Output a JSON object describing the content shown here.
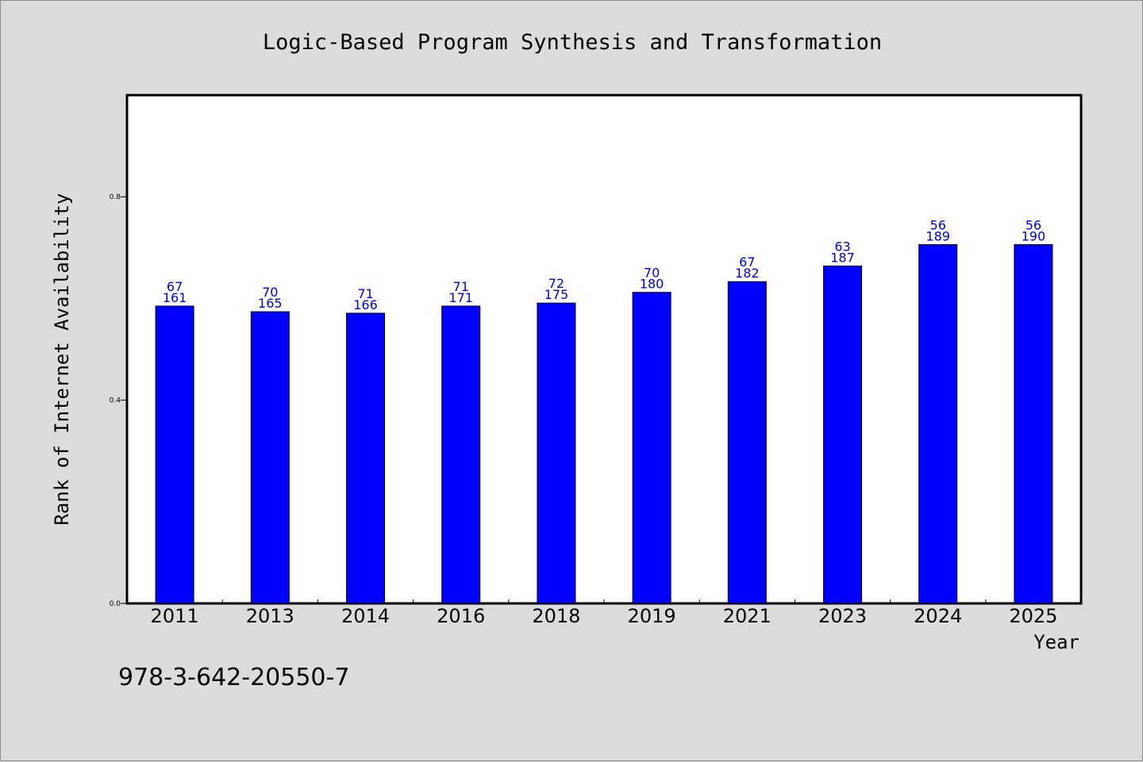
{
  "chart_data": {
    "type": "bar",
    "title": "Logic-Based Program Synthesis and Transformation",
    "xlabel": "Year",
    "ylabel": "Rank of Internet Availability",
    "categories": [
      "2011",
      "2013",
      "2014",
      "2016",
      "2018",
      "2019",
      "2021",
      "2023",
      "2024",
      "2025"
    ],
    "values": [
      0.585,
      0.574,
      0.571,
      0.585,
      0.591,
      0.612,
      0.633,
      0.664,
      0.706,
      0.706
    ],
    "labels_top": [
      "67",
      "70",
      "71",
      "71",
      "72",
      "70",
      "67",
      "63",
      "56",
      "56"
    ],
    "labels_bottom": [
      "161",
      "165",
      "166",
      "171",
      "175",
      "180",
      "182",
      "187",
      "189",
      "190"
    ],
    "yticks": [
      "0.0",
      "0.4",
      "0.8"
    ],
    "ytick_values": [
      0.0,
      0.4,
      0.8
    ],
    "ylim": [
      0,
      1.0
    ],
    "bar_color": "#0000ff",
    "label_color": "#0000cc",
    "grid": false,
    "legend": "none"
  },
  "footer": {
    "isbn": "978-3-642-20550-7"
  }
}
